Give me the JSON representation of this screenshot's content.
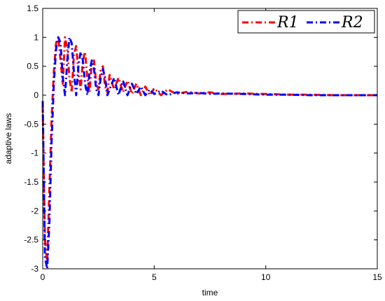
{
  "chart_data": {
    "type": "line",
    "title": "",
    "xlabel": "time",
    "ylabel": "adaptive laws",
    "xlim": [
      0,
      15
    ],
    "ylim": [
      -3,
      1.5
    ],
    "xticks": [
      "0",
      "5",
      "10",
      "15"
    ],
    "yticks": [
      "-3",
      "-2.5",
      "-2",
      "-1.5",
      "-1",
      "-0.5",
      "0",
      "0.5",
      "1",
      "1.5"
    ],
    "grid": false,
    "legend_position": "top-right",
    "series": [
      {
        "name": "R1",
        "color": "#ff0000",
        "line_style": "dash-dot",
        "x": [
          0,
          0.1,
          0.2,
          0.3,
          0.4,
          0.5,
          0.6,
          0.7,
          0.8,
          0.9,
          1.0,
          1.1,
          1.2,
          1.3,
          1.4,
          1.5,
          1.6,
          1.7,
          1.8,
          1.9,
          2.0,
          2.1,
          2.2,
          2.3,
          2.4,
          2.5,
          2.6,
          2.7,
          2.8,
          2.9,
          3.0,
          3.2,
          3.4,
          3.6,
          3.8,
          4.0,
          4.2,
          4.4,
          4.6,
          4.8,
          5.0,
          5.3,
          5.6,
          6.0,
          6.5,
          7.0,
          7.5,
          8.0,
          9.0,
          10.0,
          11.0,
          12.0,
          13.0,
          14.0,
          15.0
        ],
        "y": [
          -0.2,
          -2.5,
          -2.9,
          -1.6,
          -0.4,
          0.4,
          0.9,
          1.0,
          0.6,
          0.2,
          1.0,
          0.8,
          0.3,
          0.05,
          0.7,
          0.85,
          0.4,
          0.1,
          0.6,
          0.75,
          0.3,
          0.05,
          0.55,
          0.6,
          0.2,
          0.1,
          0.45,
          0.5,
          0.15,
          0.05,
          0.35,
          0.1,
          0.3,
          0.05,
          0.25,
          0.02,
          0.2,
          0.0,
          0.15,
          0.0,
          0.12,
          0.0,
          0.1,
          0.02,
          0.06,
          0.03,
          0.05,
          0.02,
          0.03,
          0.02,
          0.01,
          0.01,
          0.0,
          0.0,
          0.0
        ]
      },
      {
        "name": "R2",
        "color": "#0000ff",
        "line_style": "dash-dot",
        "x": [
          0,
          0.1,
          0.2,
          0.3,
          0.4,
          0.5,
          0.6,
          0.7,
          0.8,
          0.9,
          1.0,
          1.1,
          1.2,
          1.3,
          1.4,
          1.5,
          1.6,
          1.7,
          1.8,
          1.9,
          2.0,
          2.1,
          2.2,
          2.3,
          2.4,
          2.5,
          2.6,
          2.7,
          2.8,
          2.9,
          3.0,
          3.2,
          3.4,
          3.6,
          3.8,
          4.0,
          4.2,
          4.4,
          4.6,
          4.8,
          5.0,
          5.3,
          5.6,
          6.0,
          6.5,
          7.0,
          7.5,
          8.0,
          9.0,
          10.0,
          11.0,
          12.0,
          13.0,
          14.0,
          15.0
        ],
        "y": [
          -0.1,
          -2.8,
          -3.0,
          -2.2,
          -0.8,
          0.2,
          0.8,
          1.0,
          0.9,
          0.3,
          0.0,
          0.6,
          1.0,
          0.9,
          0.4,
          0.0,
          0.5,
          0.75,
          0.6,
          0.2,
          0.0,
          0.4,
          0.6,
          0.45,
          0.1,
          0.0,
          0.3,
          0.45,
          0.3,
          0.0,
          0.1,
          0.3,
          0.0,
          0.25,
          0.0,
          0.2,
          0.02,
          0.15,
          0.0,
          0.1,
          0.02,
          0.08,
          0.0,
          0.05,
          0.03,
          0.04,
          0.02,
          0.03,
          0.02,
          0.01,
          0.01,
          0.0,
          0.0,
          0.0,
          0.0
        ]
      }
    ]
  }
}
